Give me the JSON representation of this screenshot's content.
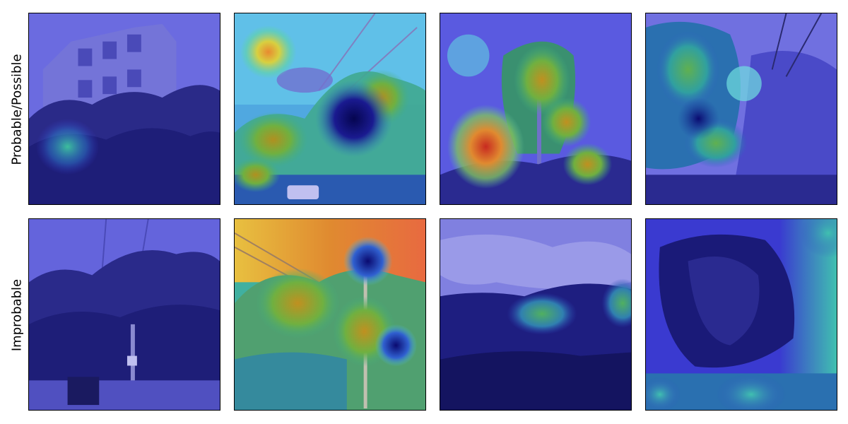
{
  "figure": {
    "row_labels": [
      "Probable/Possible",
      "Improbable"
    ],
    "colors": {
      "overlay_blue": "#3a3ad8",
      "dark_blue": "#0a0a6e",
      "cyan": "#40e0e0",
      "green": "#40c080",
      "yellow": "#d8d040",
      "orange": "#e88a30",
      "red": "#d83a20",
      "tree_dark": "#1c1c70",
      "sky_light": "#8080e8"
    },
    "panels": [
      {
        "id": "p1",
        "row": 0,
        "col": 0,
        "scene": "building-with-trees",
        "heatmap": "single-weak-spot-lower-left"
      },
      {
        "id": "p2",
        "row": 0,
        "col": 1,
        "scene": "tree-with-power-lines",
        "heatmap": "multiple-warm-spots"
      },
      {
        "id": "p3",
        "row": 0,
        "col": 2,
        "scene": "tall-tree",
        "heatmap": "red-spot-lower-left"
      },
      {
        "id": "p4",
        "row": 0,
        "col": 3,
        "scene": "dense-tree-canopy",
        "heatmap": "green-spots-center"
      },
      {
        "id": "p5",
        "row": 1,
        "col": 0,
        "scene": "street-trees",
        "heatmap": "none"
      },
      {
        "id": "p6",
        "row": 1,
        "col": 1,
        "scene": "tree-with-pole",
        "heatmap": "large-warm-area"
      },
      {
        "id": "p7",
        "row": 1,
        "col": 2,
        "scene": "tree-line-cloudy-sky",
        "heatmap": "weak-green-band"
      },
      {
        "id": "p8",
        "row": 1,
        "col": 3,
        "scene": "close-up-canopy",
        "heatmap": "cyan-edges"
      }
    ]
  }
}
